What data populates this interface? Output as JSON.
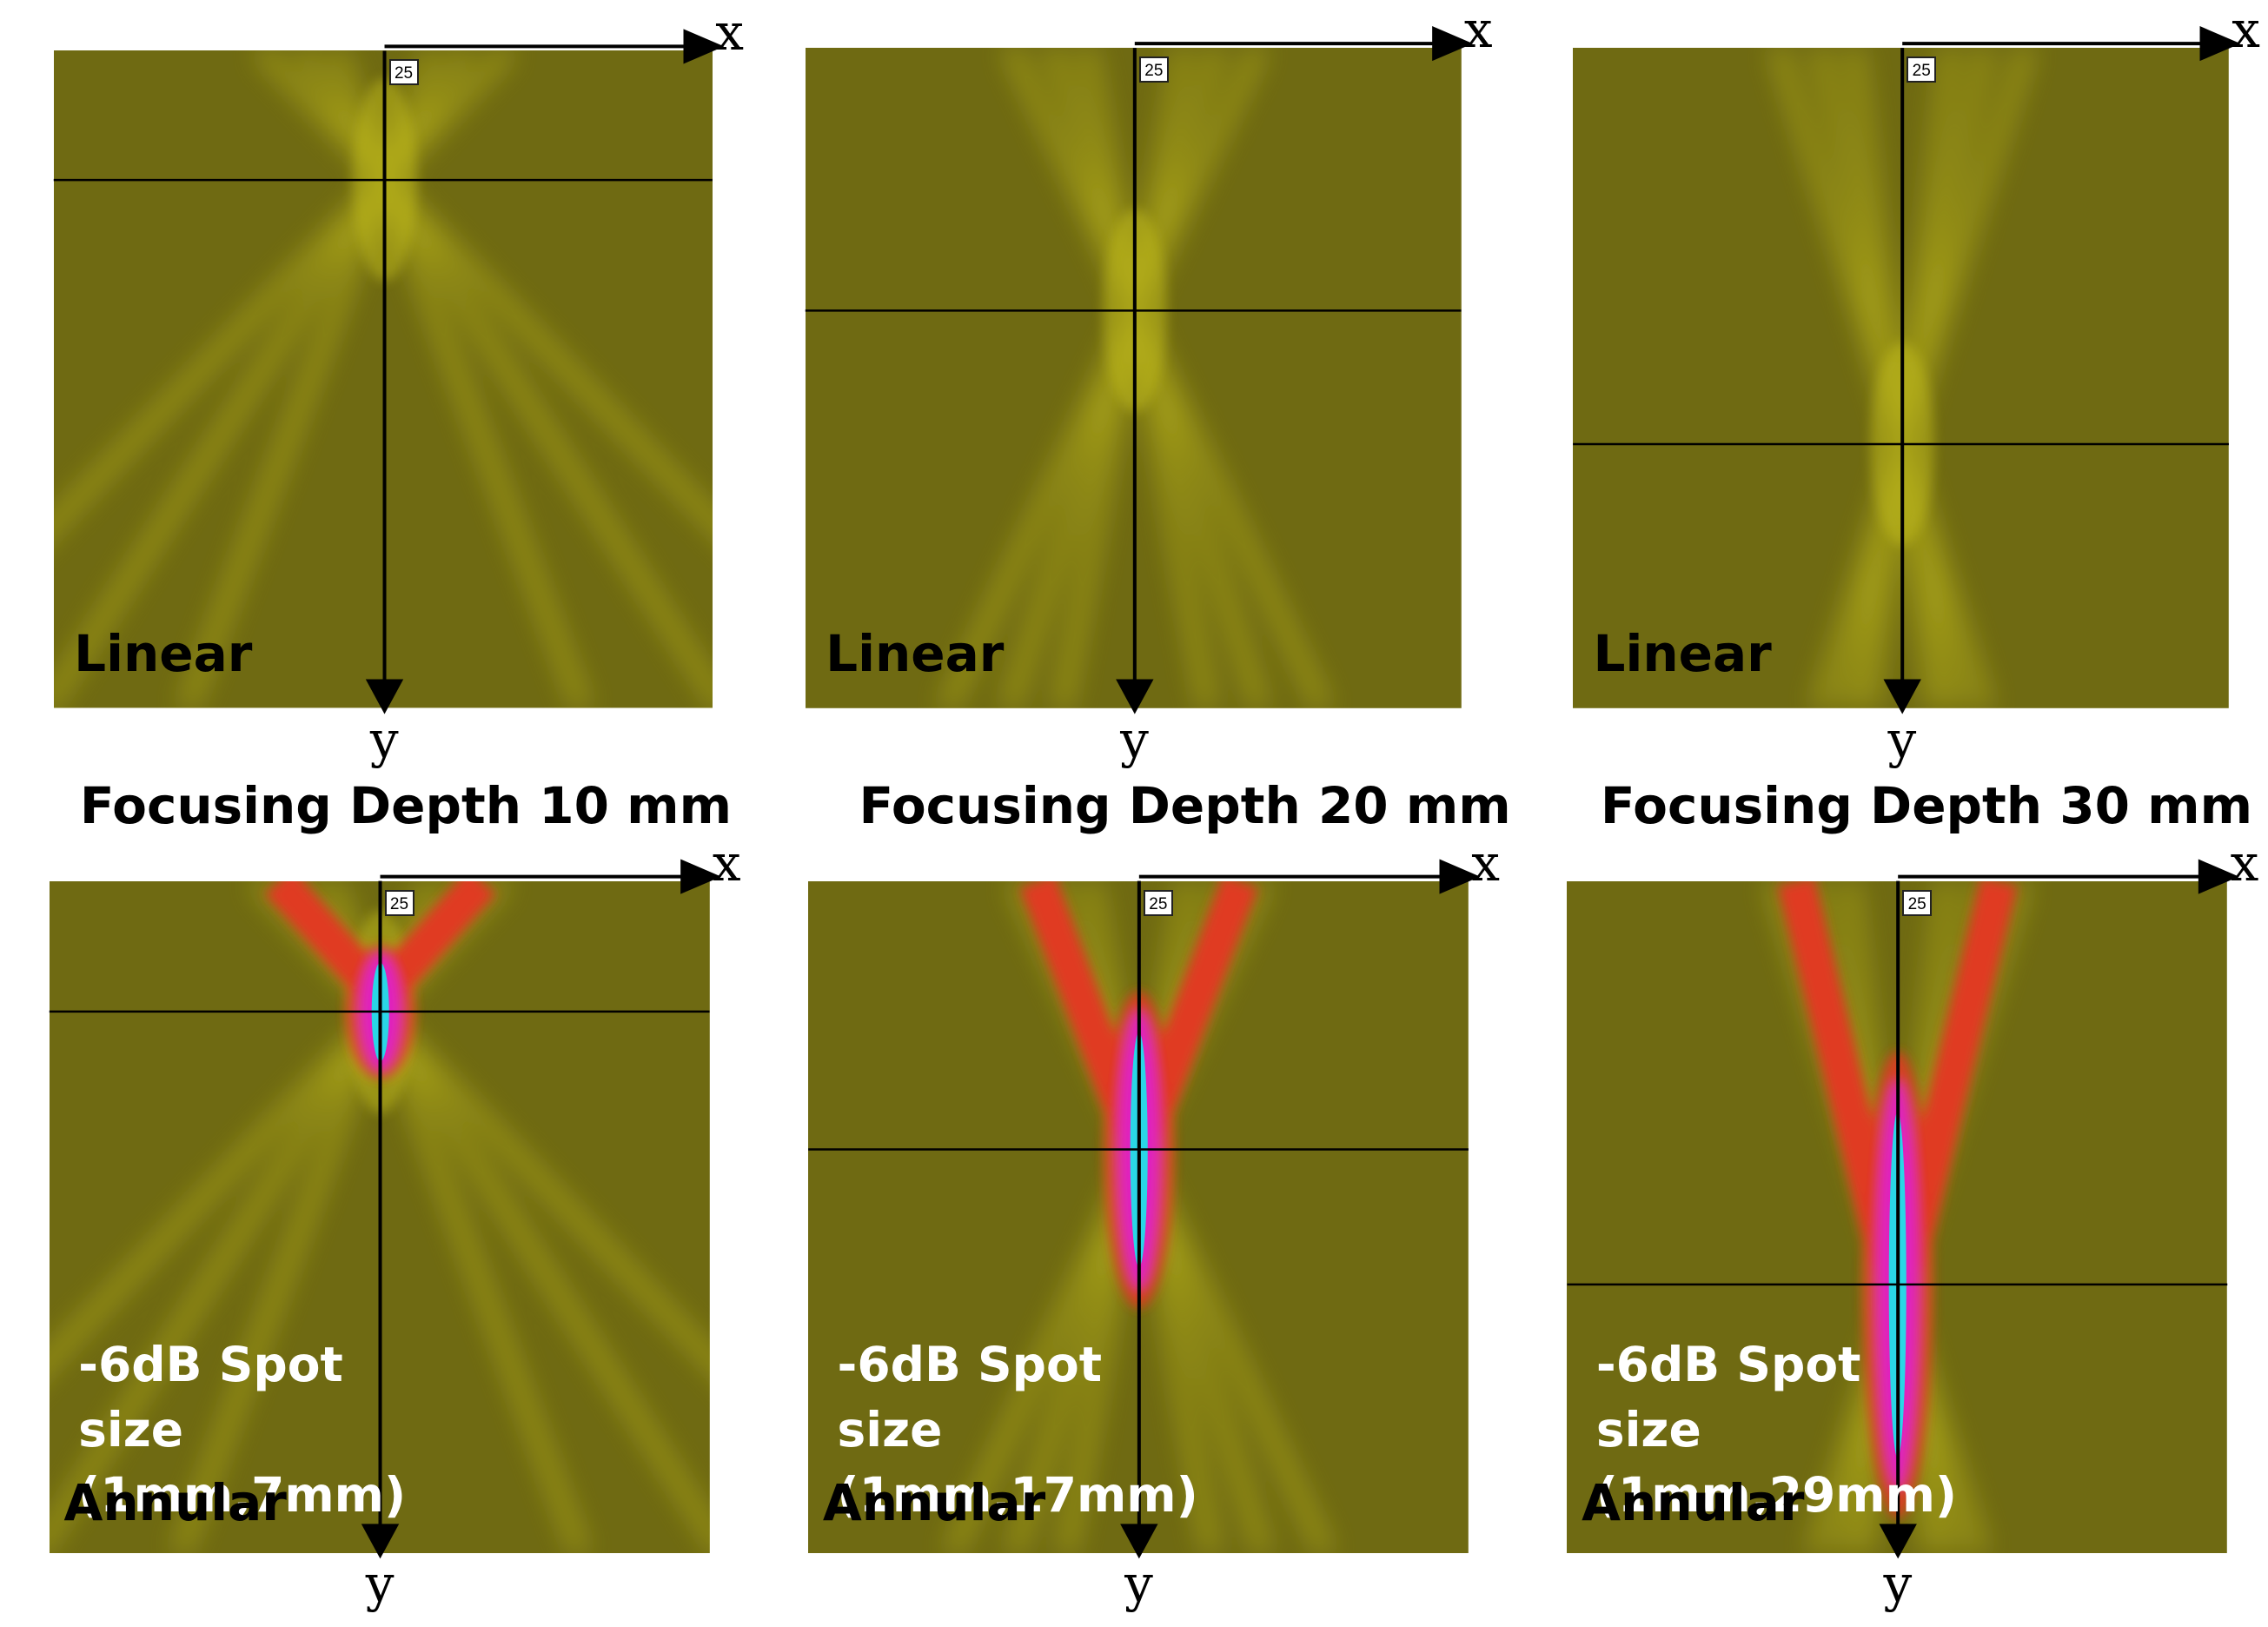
{
  "axis": {
    "x_label": "x",
    "y_label": "y",
    "scale_tag": "25"
  },
  "columns": [
    {
      "caption": "Focusing Depth 10 mm",
      "linear": {
        "label": "Linear"
      },
      "annular": {
        "label": "Annular",
        "spot_line1": "-6dB Spot size",
        "spot_line2": "(1mm,7mm)"
      }
    },
    {
      "caption": "Focusing Depth 20 mm",
      "linear": {
        "label": "Linear"
      },
      "annular": {
        "label": "Annular",
        "spot_line1": "-6dB Spot size",
        "spot_line2": "(1mm,17mm)"
      }
    },
    {
      "caption": "Focusing Depth 30 mm",
      "linear": {
        "label": "Linear"
      },
      "annular": {
        "label": "Annular",
        "spot_line1": "-6dB Spot size",
        "spot_line2": "(1mm,29mm)"
      }
    }
  ],
  "colors": {
    "field_background": "#6f6a12",
    "beam_yellow": "#c8c21a",
    "hot_red": "#e03a22",
    "hot_magenta": "#e020c0",
    "hot_cyan": "#20e0e8"
  }
}
